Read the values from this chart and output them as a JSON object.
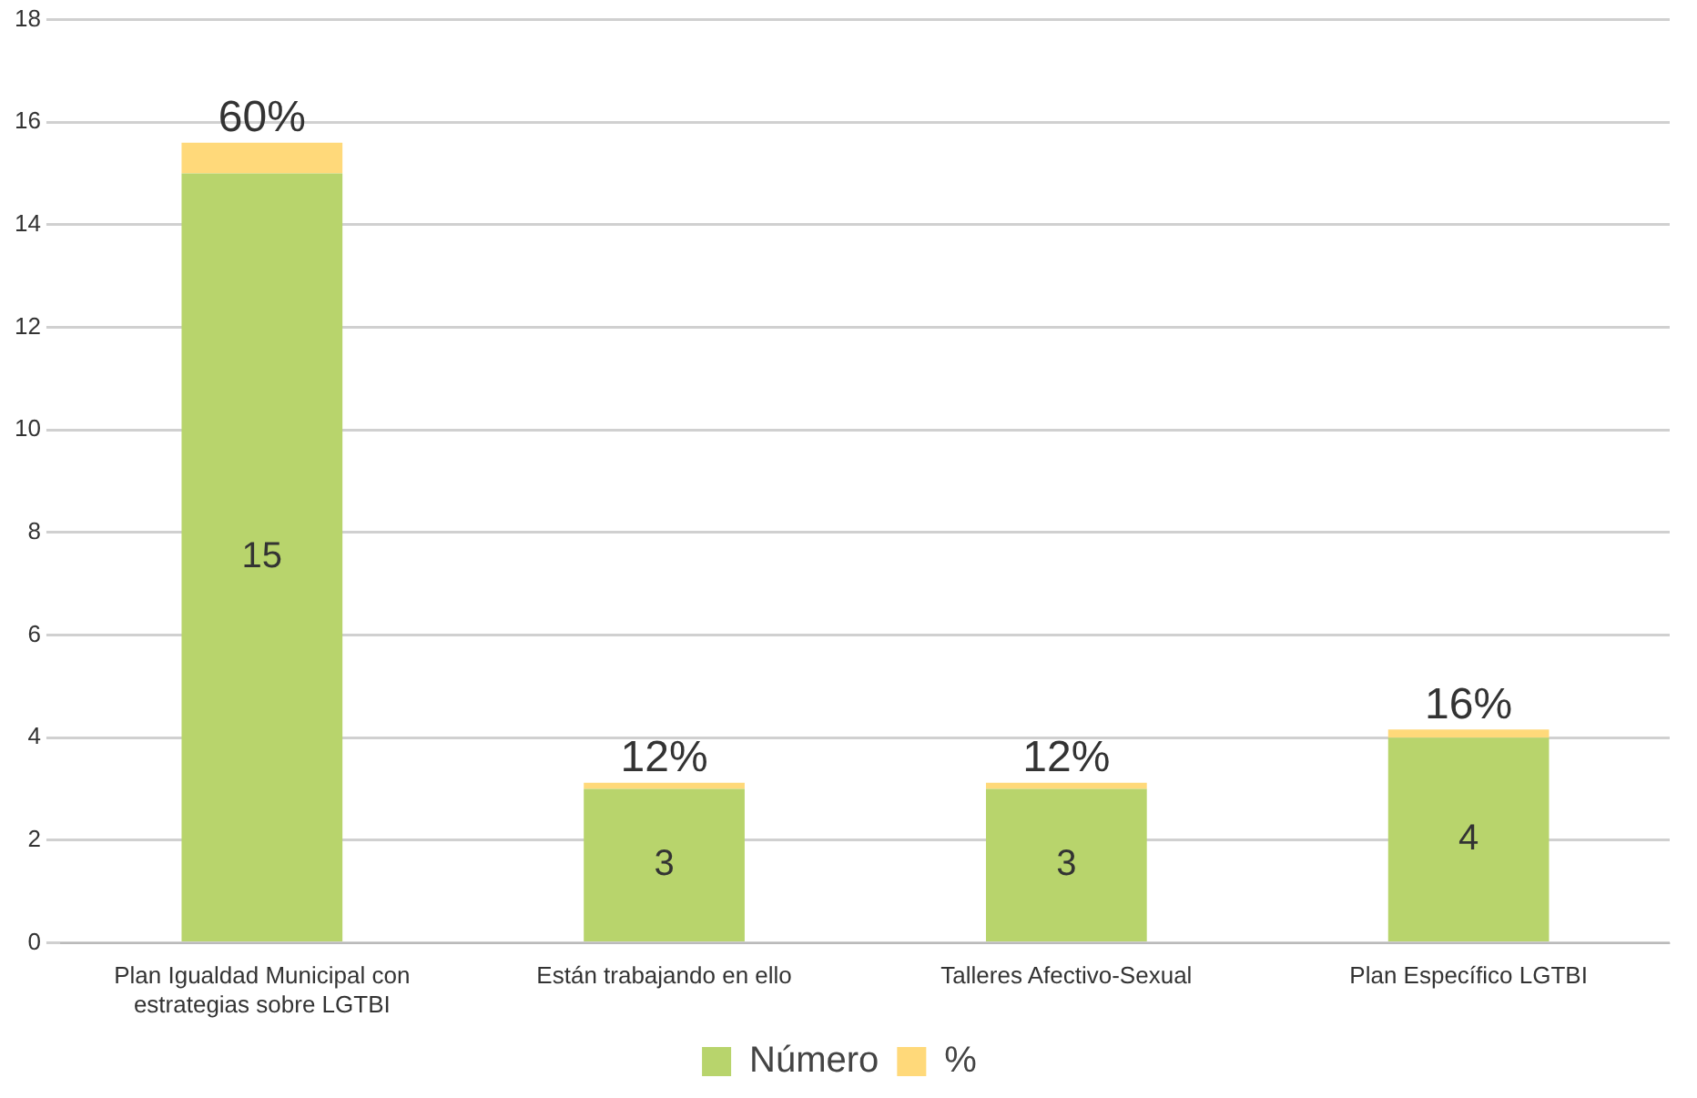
{
  "chart_data": {
    "type": "bar",
    "stacked": true,
    "categories": [
      "Plan Igualdad Municipal con estrategias sobre LGTBI",
      "Están trabajando en ello",
      "Talleres Afectivo-Sexual",
      "Plan Específico LGTBI"
    ],
    "series": [
      {
        "name": "Número",
        "color": "#b8d46c",
        "values": [
          15,
          3,
          3,
          4
        ],
        "value_labels": [
          "15",
          "3",
          "3",
          "4"
        ]
      },
      {
        "name": "%",
        "color": "#ffd97a",
        "values": [
          0.6,
          0.12,
          0.12,
          0.16
        ],
        "value_labels": [
          "60%",
          "12%",
          "12%",
          "16%"
        ]
      }
    ],
    "ylim": [
      0,
      18
    ],
    "yticks": [
      0,
      2,
      4,
      6,
      8,
      10,
      12,
      14,
      16,
      18
    ],
    "grid": "y",
    "legend": "bottom"
  }
}
